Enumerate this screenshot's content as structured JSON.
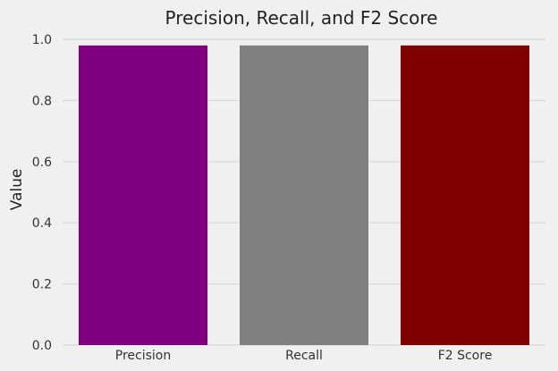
{
  "chart_data": {
    "type": "bar",
    "title": "Precision, Recall, and F2 Score",
    "xlabel": "",
    "ylabel": "Value",
    "categories": [
      "Precision",
      "Recall",
      "F2 Score"
    ],
    "values": [
      0.98,
      0.98,
      0.98
    ],
    "colors": [
      "#800080",
      "#808080",
      "#800000"
    ],
    "ylim": [
      0,
      1.0
    ],
    "yticks": [
      "0.0",
      "0.2",
      "0.4",
      "0.6",
      "0.8",
      "1.0"
    ],
    "grid": true,
    "legend": "none"
  }
}
